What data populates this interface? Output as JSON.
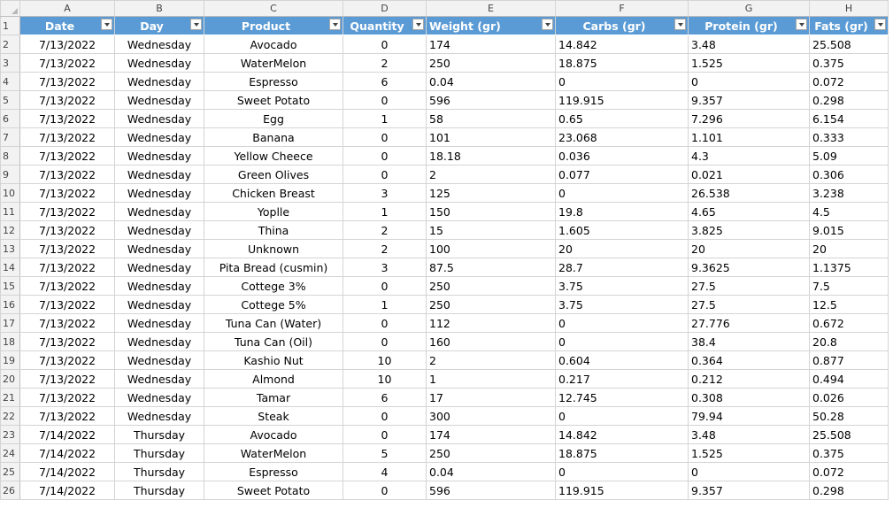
{
  "column_letters": [
    "A",
    "B",
    "C",
    "D",
    "E",
    "F",
    "G",
    "H"
  ],
  "headers": [
    "Date",
    "Day",
    "Product",
    "Quantity",
    "Weight (gr)",
    "Carbs (gr)",
    "Protein (gr)",
    "Fats (gr)"
  ],
  "header_row_number": "1",
  "rows": [
    {
      "n": "2",
      "date": "7/13/2022",
      "day": "Wednesday",
      "product": "Avocado",
      "qty": "0",
      "weight": "174",
      "carbs": "14.842",
      "protein": "3.48",
      "fats": "25.508"
    },
    {
      "n": "3",
      "date": "7/13/2022",
      "day": "Wednesday",
      "product": "WaterMelon",
      "qty": "2",
      "weight": "250",
      "carbs": "18.875",
      "protein": "1.525",
      "fats": "0.375"
    },
    {
      "n": "4",
      "date": "7/13/2022",
      "day": "Wednesday",
      "product": "Espresso",
      "qty": "6",
      "weight": "0.04",
      "carbs": "0",
      "protein": "0",
      "fats": "0.072"
    },
    {
      "n": "5",
      "date": "7/13/2022",
      "day": "Wednesday",
      "product": "Sweet Potato",
      "qty": "0",
      "weight": "596",
      "carbs": "119.915",
      "protein": "9.357",
      "fats": "0.298"
    },
    {
      "n": "6",
      "date": "7/13/2022",
      "day": "Wednesday",
      "product": "Egg",
      "qty": "1",
      "weight": "58",
      "carbs": "0.65",
      "protein": "7.296",
      "fats": "6.154"
    },
    {
      "n": "7",
      "date": "7/13/2022",
      "day": "Wednesday",
      "product": "Banana",
      "qty": "0",
      "weight": "101",
      "carbs": "23.068",
      "protein": "1.101",
      "fats": "0.333"
    },
    {
      "n": "8",
      "date": "7/13/2022",
      "day": "Wednesday",
      "product": "Yellow Cheece",
      "qty": "0",
      "weight": "18.18",
      "carbs": "0.036",
      "protein": "4.3",
      "fats": "5.09"
    },
    {
      "n": "9",
      "date": "7/13/2022",
      "day": "Wednesday",
      "product": "Green Olives",
      "qty": "0",
      "weight": "2",
      "carbs": "0.077",
      "protein": "0.021",
      "fats": "0.306"
    },
    {
      "n": "10",
      "date": "7/13/2022",
      "day": "Wednesday",
      "product": "Chicken Breast",
      "qty": "3",
      "weight": "125",
      "carbs": "0",
      "protein": "26.538",
      "fats": "3.238"
    },
    {
      "n": "11",
      "date": "7/13/2022",
      "day": "Wednesday",
      "product": "Yoplle",
      "qty": "1",
      "weight": "150",
      "carbs": "19.8",
      "protein": "4.65",
      "fats": "4.5"
    },
    {
      "n": "12",
      "date": "7/13/2022",
      "day": "Wednesday",
      "product": "Thina",
      "qty": "2",
      "weight": "15",
      "carbs": "1.605",
      "protein": "3.825",
      "fats": "9.015"
    },
    {
      "n": "13",
      "date": "7/13/2022",
      "day": "Wednesday",
      "product": "Unknown",
      "qty": "2",
      "weight": "100",
      "carbs": "20",
      "protein": "20",
      "fats": "20"
    },
    {
      "n": "14",
      "date": "7/13/2022",
      "day": "Wednesday",
      "product": "Pita Bread (cusmin)",
      "qty": "3",
      "weight": "87.5",
      "carbs": "28.7",
      "protein": "9.3625",
      "fats": "1.1375"
    },
    {
      "n": "15",
      "date": "7/13/2022",
      "day": "Wednesday",
      "product": "Cottege 3%",
      "qty": "0",
      "weight": "250",
      "carbs": "3.75",
      "protein": "27.5",
      "fats": "7.5"
    },
    {
      "n": "16",
      "date": "7/13/2022",
      "day": "Wednesday",
      "product": "Cottege 5%",
      "qty": "1",
      "weight": "250",
      "carbs": "3.75",
      "protein": "27.5",
      "fats": "12.5"
    },
    {
      "n": "17",
      "date": "7/13/2022",
      "day": "Wednesday",
      "product": "Tuna Can (Water)",
      "qty": "0",
      "weight": "112",
      "carbs": "0",
      "protein": "27.776",
      "fats": "0.672"
    },
    {
      "n": "18",
      "date": "7/13/2022",
      "day": "Wednesday",
      "product": "Tuna Can (Oil)",
      "qty": "0",
      "weight": "160",
      "carbs": "0",
      "protein": "38.4",
      "fats": "20.8"
    },
    {
      "n": "19",
      "date": "7/13/2022",
      "day": "Wednesday",
      "product": "Kashio Nut",
      "qty": "10",
      "weight": "2",
      "carbs": "0.604",
      "protein": "0.364",
      "fats": "0.877"
    },
    {
      "n": "20",
      "date": "7/13/2022",
      "day": "Wednesday",
      "product": "Almond",
      "qty": "10",
      "weight": "1",
      "carbs": "0.217",
      "protein": "0.212",
      "fats": "0.494"
    },
    {
      "n": "21",
      "date": "7/13/2022",
      "day": "Wednesday",
      "product": "Tamar",
      "qty": "6",
      "weight": "17",
      "carbs": "12.745",
      "protein": "0.308",
      "fats": "0.026"
    },
    {
      "n": "22",
      "date": "7/13/2022",
      "day": "Wednesday",
      "product": "Steak",
      "qty": "0",
      "weight": "300",
      "carbs": "0",
      "protein": "79.94",
      "fats": "50.28"
    },
    {
      "n": "23",
      "date": "7/14/2022",
      "day": "Thursday",
      "product": "Avocado",
      "qty": "0",
      "weight": "174",
      "carbs": "14.842",
      "protein": "3.48",
      "fats": "25.508"
    },
    {
      "n": "24",
      "date": "7/14/2022",
      "day": "Thursday",
      "product": "WaterMelon",
      "qty": "5",
      "weight": "250",
      "carbs": "18.875",
      "protein": "1.525",
      "fats": "0.375"
    },
    {
      "n": "25",
      "date": "7/14/2022",
      "day": "Thursday",
      "product": "Espresso",
      "qty": "4",
      "weight": "0.04",
      "carbs": "0",
      "protein": "0",
      "fats": "0.072"
    },
    {
      "n": "26",
      "date": "7/14/2022",
      "day": "Thursday",
      "product": "Sweet Potato",
      "qty": "0",
      "weight": "596",
      "carbs": "119.915",
      "protein": "9.357",
      "fats": "0.298"
    }
  ],
  "colors": {
    "table_header_bg": "#5b9bd5",
    "table_header_text": "#ffffff",
    "grid": "#d4d4d4",
    "sheet_header_bg": "#f2f2f2"
  }
}
